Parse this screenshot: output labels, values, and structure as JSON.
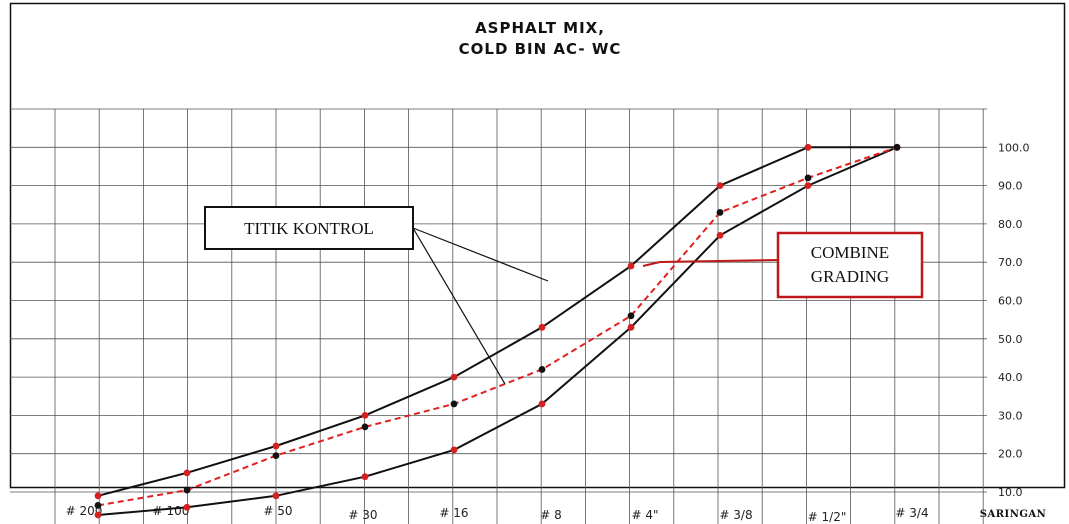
{
  "chart_data": {
    "type": "line",
    "title": [
      "ASPHALT MIX,",
      "COLD BIN AC- WC"
    ],
    "xlabel": "SARINGAN",
    "categories": [
      "# 200",
      "# 100",
      "# 50",
      "# 30",
      "# 16",
      "# 8",
      "# 4\"",
      "# 3/8",
      "# 1/2\"",
      "# 3/4"
    ],
    "y_ticks": [
      "-",
      "10.0",
      "20.0",
      "30.0",
      "40.0",
      "50.0",
      "60.0",
      "70.0",
      "80.0",
      "90.0",
      "100.0"
    ],
    "ylim": [
      0,
      100
    ],
    "grid": true,
    "series": [
      {
        "values": [
          9,
          15,
          22,
          30,
          40,
          53,
          69,
          90,
          100,
          100
        ],
        "color": "#111111",
        "dash": false,
        "marker_color": "#d42020"
      },
      {
        "values": [
          4,
          6,
          9,
          14,
          21,
          33,
          53,
          77,
          90,
          100
        ],
        "color": "#111111",
        "dash": false,
        "marker_color": "#d42020"
      },
      {
        "values": [
          6.5,
          10.5,
          19.5,
          27,
          33,
          42,
          56,
          83,
          92,
          100
        ],
        "color": "#e02020",
        "dash": true,
        "marker_color": "#111111"
      }
    ],
    "annotations": [
      {
        "text": "TITIK KONTROL"
      },
      {
        "text": [
          "COMBINE",
          "GRADING"
        ]
      }
    ]
  }
}
